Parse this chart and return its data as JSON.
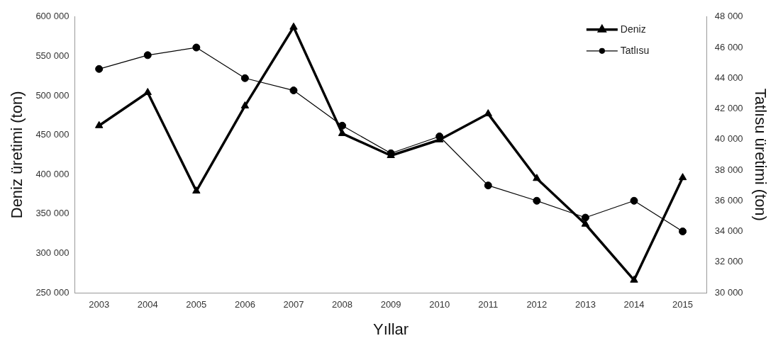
{
  "chart_data": {
    "type": "line",
    "xlabel": "Yıllar",
    "ylabel": "Deniz üretimi (ton)",
    "y2label": "Tatlısu üretimi (ton)",
    "categories": [
      "2003",
      "2004",
      "2005",
      "2006",
      "2007",
      "2008",
      "2009",
      "2010",
      "2011",
      "2012",
      "2013",
      "2014",
      "2015"
    ],
    "series": [
      {
        "name": "Deniz",
        "color": "#000000",
        "marker": "triangle",
        "values": [
          462000,
          504000,
          379000,
          487000,
          587000,
          452000,
          424000,
          444000,
          477000,
          395000,
          337000,
          266000,
          396000
        ]
      },
      {
        "name": "Tatlısu",
        "color": "#000000",
        "marker": "circle",
        "axis": "y2",
        "values": [
          44600,
          45500,
          46000,
          44000,
          43200,
          40900,
          39100,
          40200,
          37000,
          36000,
          34900,
          36000,
          34000
        ]
      }
    ],
    "ylim": [
      250000,
      600000
    ],
    "yticks": [
      {
        "value": 250000,
        "label": "250 000"
      },
      {
        "value": 300000,
        "label": "300 000"
      },
      {
        "value": 350000,
        "label": "350 000"
      },
      {
        "value": 400000,
        "label": "400 000"
      },
      {
        "value": 450000,
        "label": "450 000"
      },
      {
        "value": 500000,
        "label": "500 000"
      },
      {
        "value": 550000,
        "label": "550 000"
      },
      {
        "value": 600000,
        "label": "600 000"
      }
    ],
    "y2lim": [
      30000,
      48000
    ],
    "y2ticks": [
      {
        "value": 30000,
        "label": "30 000"
      },
      {
        "value": 32000,
        "label": "32 000"
      },
      {
        "value": 34000,
        "label": "34 000"
      },
      {
        "value": 36000,
        "label": "36 000"
      },
      {
        "value": 38000,
        "label": "38 000"
      },
      {
        "value": 40000,
        "label": "40 000"
      },
      {
        "value": 42000,
        "label": "42 000"
      },
      {
        "value": 44000,
        "label": "44 000"
      },
      {
        "value": 46000,
        "label": "46 000"
      },
      {
        "value": 48000,
        "label": "48 000"
      }
    ],
    "grid": false,
    "legend": "top right",
    "line_style": "solid"
  }
}
